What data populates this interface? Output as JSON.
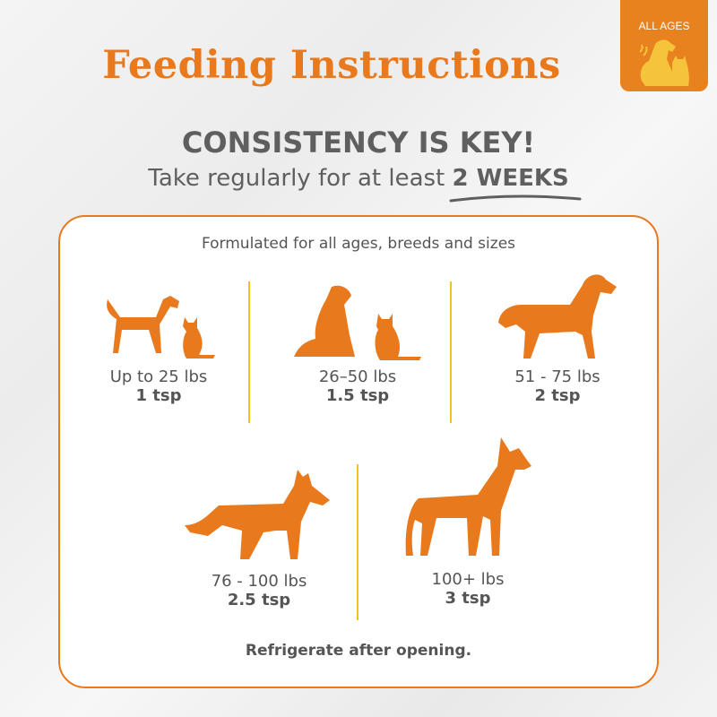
{
  "title": "Feeding Instructions",
  "badge": {
    "label": "ALL AGES",
    "icon": "dog-and-cat-icon"
  },
  "headline": "CONSISTENCY IS KEY!",
  "subline": {
    "prefix": "Take regularly for at least",
    "emphasis": "2 WEEKS"
  },
  "panel": {
    "intro": "Formulated for all ages, breeds and sizes",
    "items": [
      {
        "weight": "Up to 25 lbs",
        "dose": "1 tsp",
        "icon": "small-dog-and-cat-icon"
      },
      {
        "weight": "26–50 lbs",
        "dose": "1.5 tsp",
        "icon": "medium-dog-and-cat-icon"
      },
      {
        "weight": "51 - 75 lbs",
        "dose": "2 tsp",
        "icon": "large-dog-icon"
      },
      {
        "weight": "76 - 100 lbs",
        "dose": "2.5 tsp",
        "icon": "shepherd-dog-icon"
      },
      {
        "weight": "100+ lbs",
        "dose": "3 tsp",
        "icon": "great-dane-icon"
      }
    ],
    "note": "Refrigerate after opening."
  },
  "colors": {
    "orange": "#e8791d",
    "yellow": "#f3c21b",
    "text": "#5a5a5a"
  }
}
